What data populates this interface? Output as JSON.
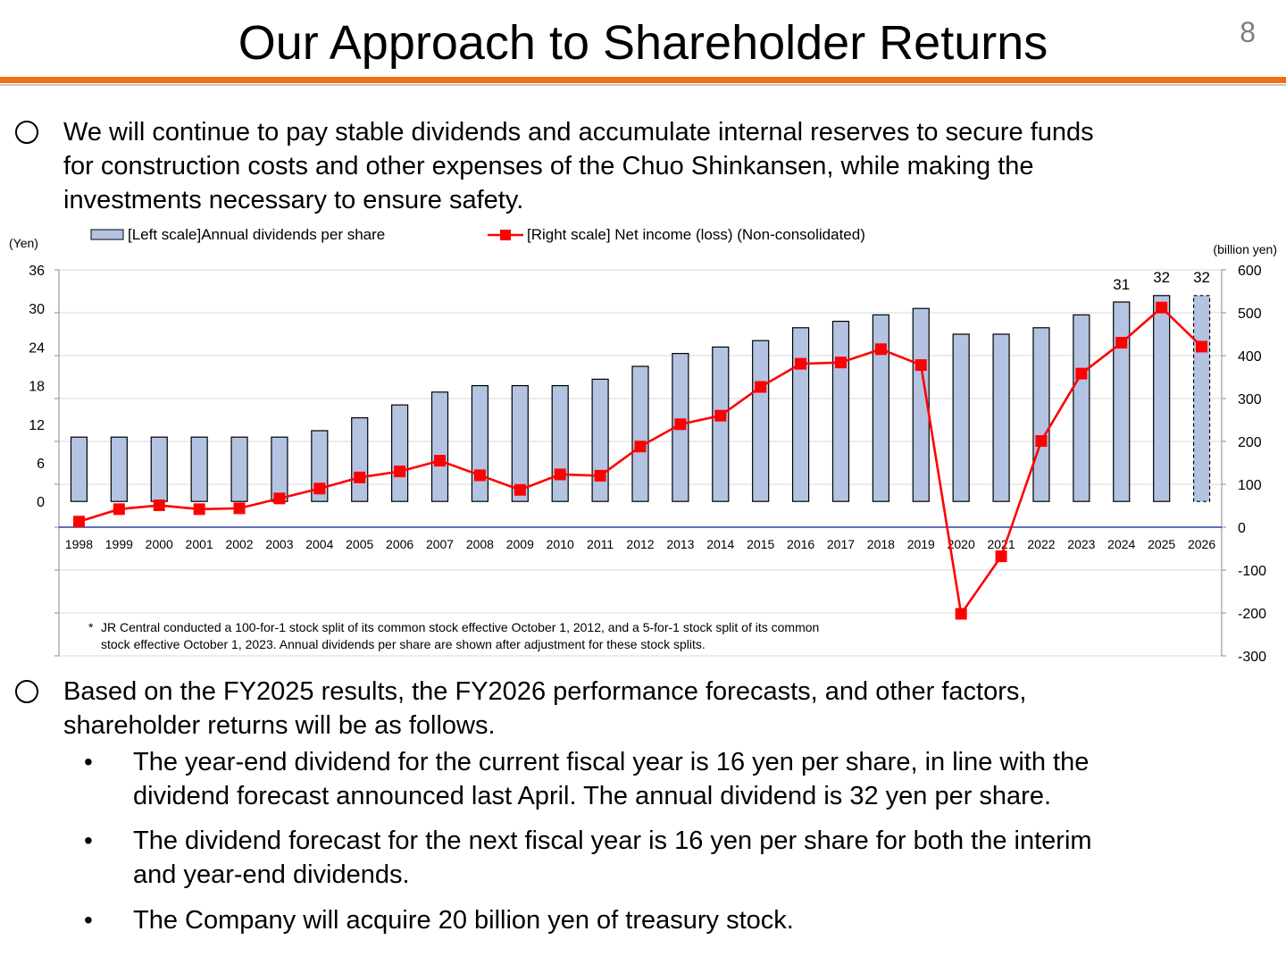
{
  "slide": {
    "title": "Our Approach to Shareholder Returns",
    "page_number": "8",
    "intro": "We will continue to pay stable dividends and accumulate internal reserves to secure funds for construction costs and other expenses of the Chuo Shinkansen, while making the investments necessary to ensure safety.",
    "intro_lines": [
      "We will continue to pay stable dividends and accumulate internal reserves to secure funds",
      "for construction costs and other expenses of the Chuo Shinkansen, while making the",
      "investments necessary to ensure safety."
    ],
    "summary_lines": [
      "Based on the FY2025 results, the FY2026 performance forecasts, and other factors,",
      "shareholder returns will be as follows."
    ],
    "bullets": [
      [
        "The year-end dividend for the current fiscal year is 16 yen per share, in line with the",
        "dividend forecast announced last April. The annual dividend is 32 yen per share."
      ],
      [
        "The dividend forecast for the next fiscal year is 16 yen per share for both the interim",
        "and year-end dividends."
      ],
      [
        "The Company will acquire 20 billion yen of treasury stock."
      ]
    ],
    "bullet_symbol": "•"
  },
  "chart_data": {
    "type": "bar",
    "categories": [
      "1998",
      "1999",
      "2000",
      "2001",
      "2002",
      "2003",
      "2004",
      "2005",
      "2006",
      "2007",
      "2008",
      "2009",
      "2010",
      "2011",
      "2012",
      "2013",
      "2014",
      "2015",
      "2016",
      "2017",
      "2018",
      "2019",
      "2020",
      "2021",
      "2022",
      "2023",
      "2024",
      "2025",
      "2026"
    ],
    "series": [
      {
        "name": "[Left scale]Annual dividends per share",
        "type": "bar",
        "axis": "left",
        "color": "#b4c3e2",
        "values": [
          10,
          10,
          10,
          10,
          10,
          10,
          11,
          13,
          15,
          17,
          18,
          18,
          18,
          19,
          21,
          23,
          24,
          25,
          27,
          28,
          29,
          30,
          26,
          26,
          27,
          29,
          31,
          32,
          32
        ],
        "forecast_index": 28
      },
      {
        "name": "[Right scale] Net income (loss) (Non-consolidated)",
        "type": "line",
        "axis": "right",
        "color": "#ff0000",
        "values": [
          13,
          42,
          51,
          42,
          44,
          67,
          90,
          116,
          130,
          155,
          121,
          87,
          123,
          120,
          188,
          240,
          260,
          327,
          381,
          384,
          415,
          378,
          -202,
          -68,
          201,
          358,
          430,
          512,
          421
        ]
      }
    ],
    "data_labels": [
      {
        "index": 26,
        "text": "31"
      },
      {
        "index": 27,
        "text": "32"
      },
      {
        "index": 28,
        "text": "32"
      }
    ],
    "left_axis": {
      "unit_label": "(Yen)",
      "ylim": [
        -24,
        36
      ],
      "ticks": [
        0,
        6,
        12,
        18,
        24,
        30,
        36
      ]
    },
    "right_axis": {
      "unit_label": "(billion yen)",
      "ylim": [
        -300,
        600
      ],
      "ticks": [
        -300,
        -200,
        -100,
        0,
        100,
        200,
        300,
        400,
        500,
        600
      ]
    },
    "grid": true,
    "legend_position": "top",
    "footnote_lines": [
      "JR Central conducted a 100-for-1 stock split of its common stock effective October 1, 2012, and a 5-for-1 stock split of its common",
      "stock effective October 1, 2023. Annual dividends per share are shown after adjustment for these stock splits."
    ],
    "footnote_marker": "*"
  }
}
